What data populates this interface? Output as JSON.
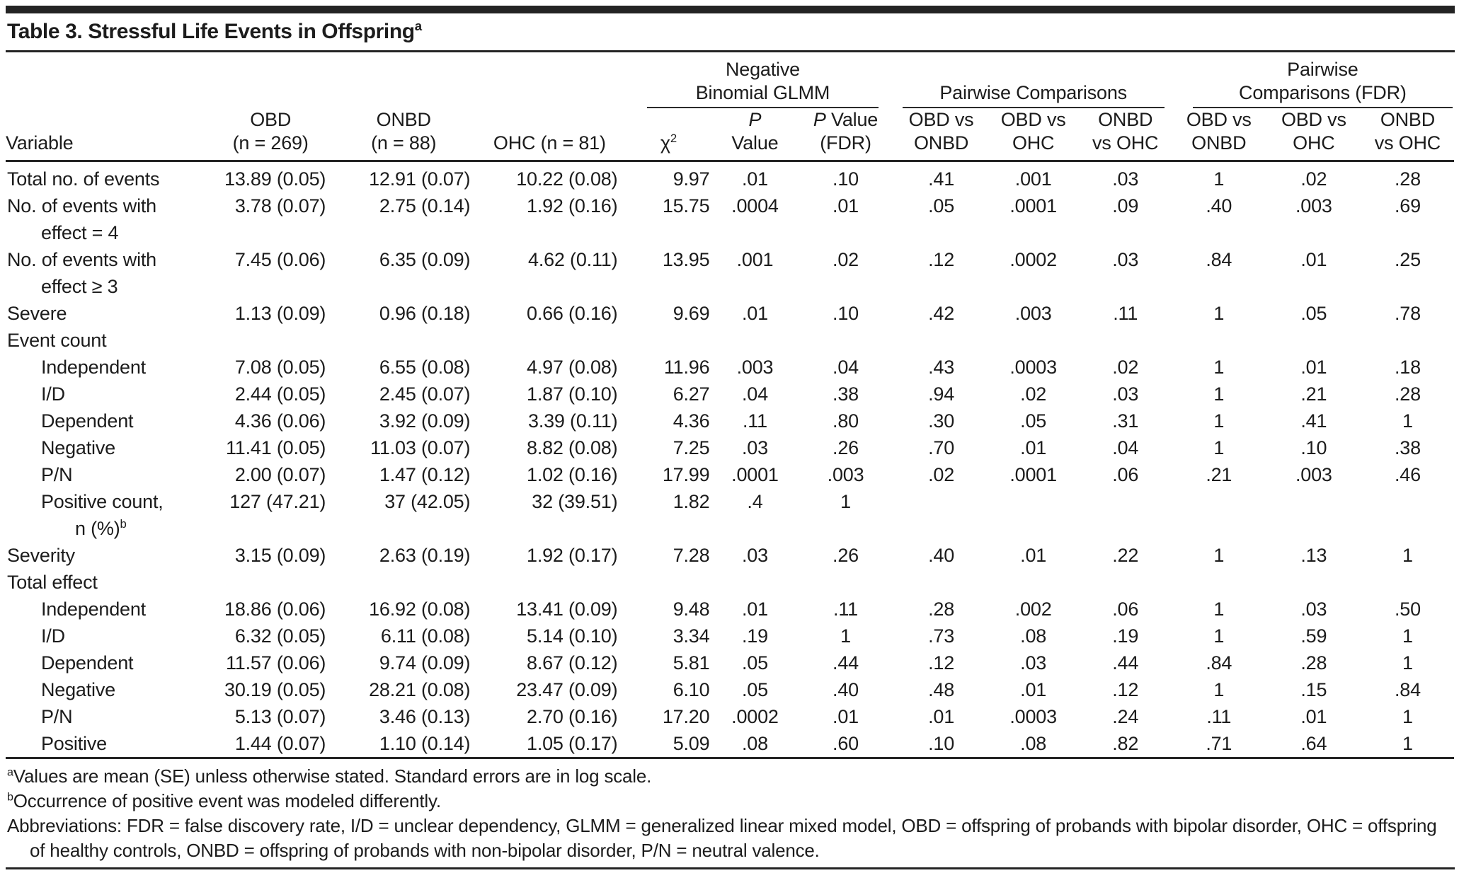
{
  "table": {
    "title": "Table 3. Stressful Life Events in Offspring",
    "title_note": "a",
    "groups": {
      "glmm_line1": "Negative",
      "glmm_line2": "Binomial GLMM",
      "pairwise": "Pairwise Comparisons",
      "fdr_line1": "Pairwise",
      "fdr_line2": "Comparisons (FDR)"
    },
    "header": {
      "variable": "Variable",
      "obd_line1": "OBD",
      "obd_line2": "(n = 269)",
      "onbd_line1": "ONBD",
      "onbd_line2": "(n = 88)",
      "ohc": "OHC (n = 81)",
      "chi_base": "χ",
      "chi_sup": "2",
      "p_line1": "P",
      "p_line2": "Value",
      "pfdr_p": "P",
      "pfdr_value": " Value",
      "pfdr_line2": "(FDR)",
      "pairwise_cols": [
        {
          "line1": "OBD vs",
          "line2": "ONBD"
        },
        {
          "line1": "OBD vs",
          "line2": "OHC"
        },
        {
          "line1": "ONBD",
          "line2": "vs OHC"
        }
      ]
    },
    "column_ids": [
      "obd",
      "onbd",
      "ohc",
      "chi2",
      "p-value",
      "p-value-fdr",
      "obd-vs-onbd",
      "obd-vs-ohc",
      "onbd-vs-ohc",
      "fdr-obd-vs-onbd",
      "fdr-obd-vs-ohc",
      "fdr-onbd-vs-ohc"
    ],
    "rows": [
      {
        "label": "Total no. of events",
        "indent": 0,
        "cells": [
          "13.89 (0.05)",
          "12.91 (0.07)",
          "10.22 (0.08)",
          "9.97",
          ".01",
          ".10",
          ".41",
          ".001",
          ".03",
          "1",
          ".02",
          ".28"
        ]
      },
      {
        "label": "No. of events with",
        "label2": "effect = 4",
        "indent": 0,
        "cells": [
          "3.78 (0.07)",
          "2.75 (0.14)",
          "1.92 (0.16)",
          "15.75",
          ".0004",
          ".01",
          ".05",
          ".0001",
          ".09",
          ".40",
          ".003",
          ".69"
        ]
      },
      {
        "label": "No. of events with",
        "label2": "effect ≥ 3",
        "indent": 0,
        "cells": [
          "7.45 (0.06)",
          "6.35 (0.09)",
          "4.62 (0.11)",
          "13.95",
          ".001",
          ".02",
          ".12",
          ".0002",
          ".03",
          ".84",
          ".01",
          ".25"
        ]
      },
      {
        "label": "Severe",
        "indent": 0,
        "cells": [
          "1.13 (0.09)",
          "0.96 (0.18)",
          "0.66 (0.16)",
          "9.69",
          ".01",
          ".10",
          ".42",
          ".003",
          ".11",
          "1",
          ".05",
          ".78"
        ]
      },
      {
        "label": "Event count",
        "section": true,
        "cells": []
      },
      {
        "label": "Independent",
        "indent": 1,
        "cells": [
          "7.08 (0.05)",
          "6.55 (0.08)",
          "4.97 (0.08)",
          "11.96",
          ".003",
          ".04",
          ".43",
          ".0003",
          ".02",
          "1",
          ".01",
          ".18"
        ]
      },
      {
        "label": "I/D",
        "indent": 1,
        "cells": [
          "2.44 (0.05)",
          "2.45 (0.07)",
          "1.87 (0.10)",
          "6.27",
          ".04",
          ".38",
          ".94",
          ".02",
          ".03",
          "1",
          ".21",
          ".28"
        ]
      },
      {
        "label": "Dependent",
        "indent": 1,
        "cells": [
          "4.36 (0.06)",
          "3.92 (0.09)",
          "3.39 (0.11)",
          "4.36",
          ".11",
          ".80",
          ".30",
          ".05",
          ".31",
          "1",
          ".41",
          "1"
        ]
      },
      {
        "label": "Negative",
        "indent": 1,
        "cells": [
          "11.41 (0.05)",
          "11.03 (0.07)",
          "8.82 (0.08)",
          "7.25",
          ".03",
          ".26",
          ".70",
          ".01",
          ".04",
          "1",
          ".10",
          ".38"
        ]
      },
      {
        "label": "P/N",
        "indent": 1,
        "cells": [
          "2.00 (0.07)",
          "1.47 (0.12)",
          "1.02 (0.16)",
          "17.99",
          ".0001",
          ".003",
          ".02",
          ".0001",
          ".06",
          ".21",
          ".003",
          ".46"
        ]
      },
      {
        "label": "Positive count,",
        "label2": "n (%)",
        "label2_sup": "b",
        "indent": 1,
        "cells": [
          "127 (47.21)",
          "37 (42.05)",
          "32 (39.51)",
          "1.82",
          ".4",
          "1",
          "",
          "",
          "",
          "",
          "",
          ""
        ]
      },
      {
        "label": "Severity",
        "indent": 0,
        "cells": [
          "3.15 (0.09)",
          "2.63 (0.19)",
          "1.92 (0.17)",
          "7.28",
          ".03",
          ".26",
          ".40",
          ".01",
          ".22",
          "1",
          ".13",
          "1"
        ]
      },
      {
        "label": "Total effect",
        "section": true,
        "cells": []
      },
      {
        "label": "Independent",
        "indent": 1,
        "cells": [
          "18.86 (0.06)",
          "16.92 (0.08)",
          "13.41 (0.09)",
          "9.48",
          ".01",
          ".11",
          ".28",
          ".002",
          ".06",
          "1",
          ".03",
          ".50"
        ]
      },
      {
        "label": "I/D",
        "indent": 1,
        "cells": [
          "6.32 (0.05)",
          "6.11 (0.08)",
          "5.14 (0.10)",
          "3.34",
          ".19",
          "1",
          ".73",
          ".08",
          ".19",
          "1",
          ".59",
          "1"
        ]
      },
      {
        "label": "Dependent",
        "indent": 1,
        "cells": [
          "11.57 (0.06)",
          "9.74 (0.09)",
          "8.67 (0.12)",
          "5.81",
          ".05",
          ".44",
          ".12",
          ".03",
          ".44",
          ".84",
          ".28",
          "1"
        ]
      },
      {
        "label": "Negative",
        "indent": 1,
        "cells": [
          "30.19 (0.05)",
          "28.21 (0.08)",
          "23.47 (0.09)",
          "6.10",
          ".05",
          ".40",
          ".48",
          ".01",
          ".12",
          "1",
          ".15",
          ".84"
        ]
      },
      {
        "label": "P/N",
        "indent": 1,
        "cells": [
          "5.13 (0.07)",
          "3.46 (0.13)",
          "2.70 (0.16)",
          "17.20",
          ".0002",
          ".01",
          ".01",
          ".0003",
          ".24",
          ".11",
          ".01",
          "1"
        ]
      },
      {
        "label": "Positive",
        "indent": 1,
        "cells": [
          "1.44 (0.07)",
          "1.10 (0.14)",
          "1.05 (0.17)",
          "5.09",
          ".08",
          ".60",
          ".10",
          ".08",
          ".82",
          ".71",
          ".64",
          "1"
        ]
      }
    ],
    "footnotes": [
      {
        "sup": "a",
        "text": "Values are mean (SE) unless otherwise stated. Standard errors are in log scale."
      },
      {
        "sup": "b",
        "text": "Occurrence of positive event was modeled differently."
      },
      {
        "sup": "",
        "text": "Abbreviations: FDR = false discovery rate, I/D = unclear dependency, GLMM = generalized linear mixed model, OBD = offspring of probands with bipolar disorder, OHC = offspring of healthy controls, ONBD = offspring of probands with non-bipolar disorder, P/N = neutral valence."
      }
    ]
  }
}
